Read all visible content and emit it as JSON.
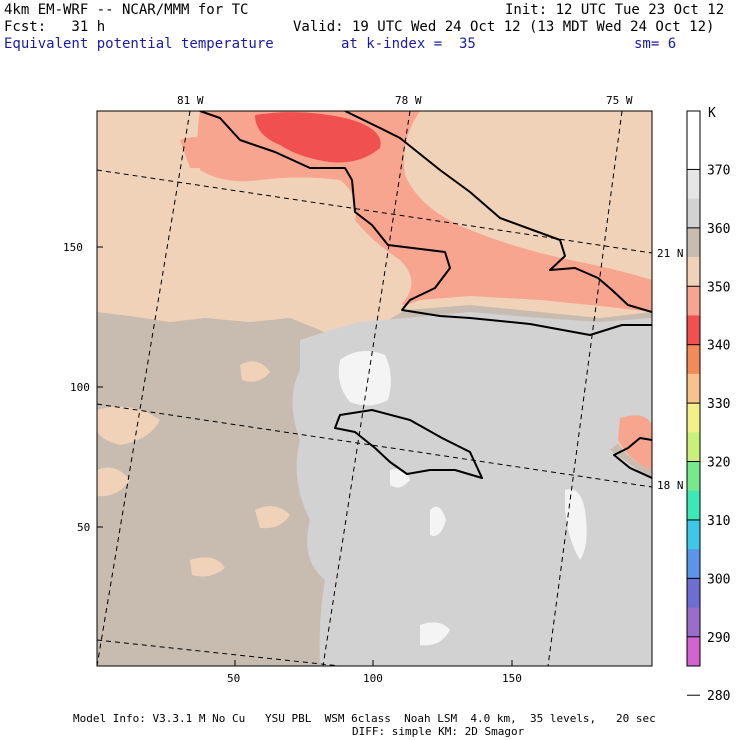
{
  "header": {
    "model_line": "4km EM-WRF -- NCAR/MMM for TC",
    "init_line": "Init: 12 UTC Tue 23 Oct 12",
    "fcst_line": "Fcst:   31 h",
    "valid_line": "Valid: 19 UTC Wed 24 Oct 12 (13 MDT Wed 24 Oct 12)",
    "field_name": "Equivalent potential temperature",
    "level": "at k-index =  35",
    "smoothing": "sm= 6"
  },
  "map": {
    "lon_labels": [
      "81 W",
      "78 W",
      "75 W"
    ],
    "lat_labels": [
      "21 N",
      "18 N"
    ],
    "x_ticks": [
      "50",
      "100",
      "150"
    ],
    "y_ticks": [
      "150",
      "100",
      "50"
    ]
  },
  "colorbar": {
    "unit": "K",
    "labels": [
      "370",
      "360",
      "350",
      "340",
      "330",
      "320",
      "310",
      "300",
      "290",
      "280"
    ],
    "colors": [
      "#ffffff",
      "#ffffff",
      "#e6e6e6",
      "#d2d2d2",
      "#c8bcb0",
      "#f0d2b8",
      "#f7a58f",
      "#f05050",
      "#f28a5a",
      "#f7c38a",
      "#f5ef8a",
      "#c8f07a",
      "#78e88c",
      "#3ce8b4",
      "#3cc8e6",
      "#5a96e6",
      "#6e6ed2",
      "#9a6ec8",
      "#d264d2"
    ]
  },
  "fill_colors": {
    "tan": "#c8bcb0",
    "peach": "#f0d2b8",
    "salmon": "#f7a58f",
    "red": "#f05050",
    "lightgray": "#d2d2d2",
    "white": "#ffffff"
  },
  "footer": {
    "line1": "Model Info: V3.3.1 M No Cu   YSU PBL  WSM 6class  Noah LSM  4.0 km,  35 levels,   20 sec",
    "line2": "DIFF: simple KM: 2D Smagor"
  }
}
